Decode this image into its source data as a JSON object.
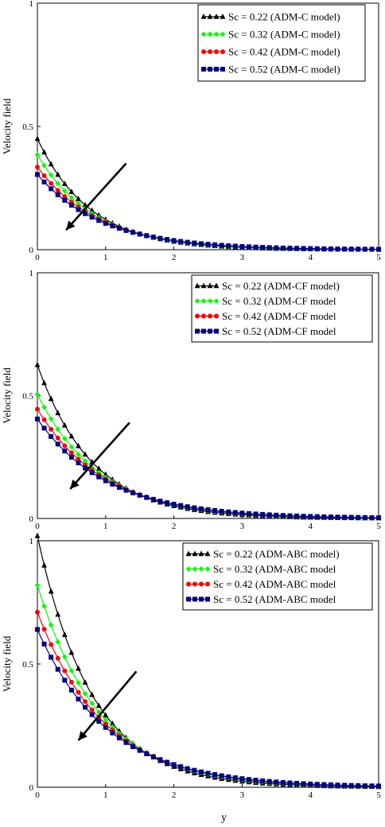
{
  "colors": {
    "series": [
      "#000000",
      "#00ff00",
      "#ff0000",
      "#00008b"
    ],
    "axes": "#000000",
    "arrow": "#000000"
  },
  "markers": [
    "triangle",
    "diamond",
    "circle",
    "square"
  ],
  "chart_data": [
    {
      "type": "line",
      "ylabel": "Velocity field",
      "xlabel": "",
      "xlim": [
        0,
        5
      ],
      "ylim": [
        0,
        1
      ],
      "xticks": [
        "0",
        "1",
        "2",
        "3",
        "4",
        "5"
      ],
      "yticks": [
        "0",
        "0.5",
        "1"
      ],
      "grid": false,
      "legend_position": "top-right",
      "arrow": {
        "from": [
          1.3,
          0.35
        ],
        "to": [
          0.42,
          0.08
        ]
      },
      "series": [
        {
          "name": "Sc = 0.22  (ADM-C model)",
          "y0": 0.45,
          "decay": 1.3
        },
        {
          "name": "Sc = 0.32  (ADM-C model)",
          "y0": 0.385,
          "decay": 1.2
        },
        {
          "name": "Sc = 0.42  (ADM-C model)",
          "y0": 0.335,
          "decay": 1.1
        },
        {
          "name": "Sc = 0.52  (ADM-C model)",
          "y0": 0.305,
          "decay": 1.05
        }
      ]
    },
    {
      "type": "line",
      "ylabel": "Velocity field",
      "xlabel": "",
      "xlim": [
        0,
        5
      ],
      "ylim": [
        0,
        1
      ],
      "xticks": [
        "0",
        "1",
        "2",
        "3",
        "4",
        "5"
      ],
      "yticks": [
        "0",
        "0.5",
        "1"
      ],
      "grid": false,
      "legend_position": "top-right",
      "arrow": {
        "from": [
          1.35,
          0.39
        ],
        "to": [
          0.48,
          0.12
        ]
      },
      "series": [
        {
          "name": "Sc = 0.22 (ADM-CF model)",
          "y0": 0.625,
          "decay": 1.25
        },
        {
          "name": "Sc = 0.32 (ADM-CF model",
          "y0": 0.505,
          "decay": 1.1
        },
        {
          "name": "Sc = 0.42 (ADM-CF model",
          "y0": 0.445,
          "decay": 1.02
        },
        {
          "name": "Sc = 0.52 (ADM-CF model",
          "y0": 0.405,
          "decay": 0.97
        }
      ]
    },
    {
      "type": "line",
      "ylabel": "Velocity field",
      "xlabel": "y",
      "xlim": [
        0,
        5
      ],
      "ylim": [
        0,
        1
      ],
      "xticks": [
        "0",
        "1",
        "2",
        "3",
        "4",
        "5"
      ],
      "yticks": [
        "0",
        "0.5",
        "1"
      ],
      "grid": false,
      "legend_position": "top-left",
      "arrow": {
        "from": [
          1.45,
          0.47
        ],
        "to": [
          0.6,
          0.19
        ]
      },
      "series": [
        {
          "name": "Sc = 0.22 (ADM-ABC model)",
          "y0": 1.02,
          "decay": 1.25
        },
        {
          "name": "Sc = 0.32 (ADM-ABC model",
          "y0": 0.82,
          "decay": 1.1
        },
        {
          "name": "Sc = 0.42 (ADM-ABC model",
          "y0": 0.71,
          "decay": 1.02
        },
        {
          "name": "Sc = 0.52 (ADM-ABC model",
          "y0": 0.64,
          "decay": 0.97
        }
      ]
    }
  ]
}
